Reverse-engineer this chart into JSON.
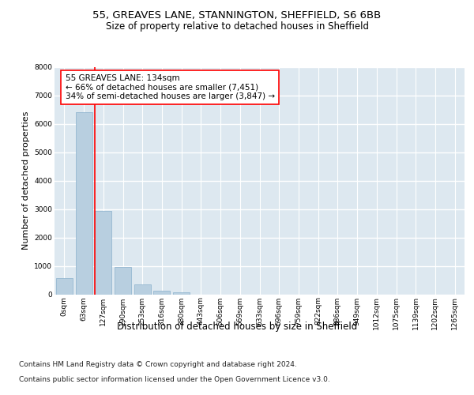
{
  "title_line1": "55, GREAVES LANE, STANNINGTON, SHEFFIELD, S6 6BB",
  "title_line2": "Size of property relative to detached houses in Sheffield",
  "xlabel": "Distribution of detached houses by size in Sheffield",
  "ylabel": "Number of detached properties",
  "bar_color": "#b8cfe0",
  "bar_edge_color": "#8ab0cc",
  "bg_color": "#dde8f0",
  "grid_color": "#ffffff",
  "categories": [
    "0sqm",
    "63sqm",
    "127sqm",
    "190sqm",
    "253sqm",
    "316sqm",
    "380sqm",
    "443sqm",
    "506sqm",
    "569sqm",
    "633sqm",
    "696sqm",
    "759sqm",
    "822sqm",
    "886sqm",
    "949sqm",
    "1012sqm",
    "1075sqm",
    "1139sqm",
    "1202sqm",
    "1265sqm"
  ],
  "values": [
    570,
    6420,
    2930,
    960,
    360,
    135,
    65,
    0,
    0,
    0,
    0,
    0,
    0,
    0,
    0,
    0,
    0,
    0,
    0,
    0,
    0
  ],
  "vline_x": 2,
  "annotation_text": "55 GREAVES LANE: 134sqm\n← 66% of detached houses are smaller (7,451)\n34% of semi-detached houses are larger (3,847) →",
  "ylim": [
    0,
    8000
  ],
  "yticks": [
    0,
    1000,
    2000,
    3000,
    4000,
    5000,
    6000,
    7000,
    8000
  ],
  "footer_line1": "Contains HM Land Registry data © Crown copyright and database right 2024.",
  "footer_line2": "Contains public sector information licensed under the Open Government Licence v3.0.",
  "title_fontsize": 9.5,
  "subtitle_fontsize": 8.5,
  "xlabel_fontsize": 8.5,
  "ylabel_fontsize": 8,
  "tick_fontsize": 6.5,
  "annotation_fontsize": 7.5,
  "footer_fontsize": 6.5
}
